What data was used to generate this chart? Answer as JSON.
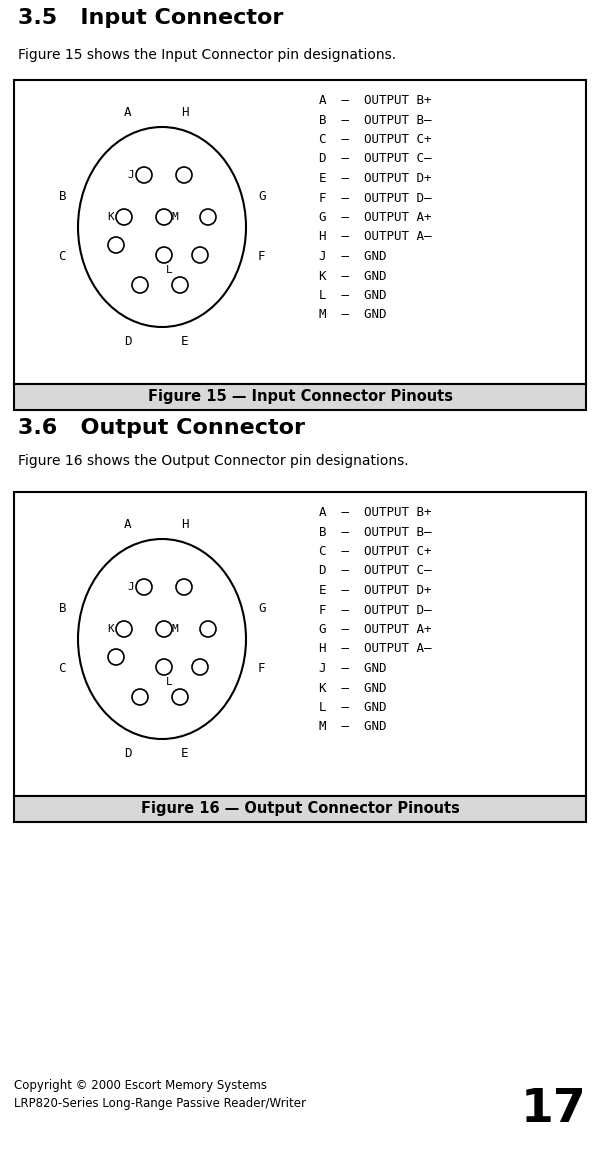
{
  "title1": "3.5   Input Connector",
  "subtitle1": "Figure 15 shows the Input Connector pin designations.",
  "title2": "3.6   Output Connector",
  "subtitle2": "Figure 16 shows the Output Connector pin designations.",
  "fig_caption1": "Figure 15 — Input Connector Pinouts",
  "fig_caption2": "Figure 16 — Output Connector Pinouts",
  "pin_labels": [
    "A  –  OUTPUT B+",
    "B  –  OUTPUT B–",
    "C  –  OUTPUT C+",
    "D  –  OUTPUT C–",
    "E  –  OUTPUT D+",
    "F  –  OUTPUT D–",
    "G  –  OUTPUT A+",
    "H  –  OUTPUT A–",
    "J  –  GND",
    "K  –  GND",
    "L  –  GND",
    "M  –  GND"
  ],
  "copyright": "Copyright © 2000 Escort Memory Systems\nLRP820-Series Long-Range Passive Reader/Writer",
  "page_num": "17",
  "bg_color": "#ffffff",
  "caption_bg": "#d8d8d8"
}
